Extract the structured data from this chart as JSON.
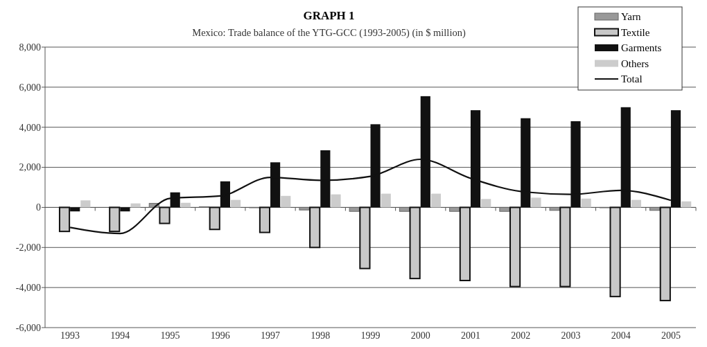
{
  "chart_data": {
    "type": "bar",
    "title": "GRAPH 1",
    "subtitle": "Mexico: Trade balance of the YTG-GCC (1993-2005) (in $ million)",
    "categories": [
      "1993",
      "1994",
      "1995",
      "1996",
      "1997",
      "1998",
      "1999",
      "2000",
      "2001",
      "2002",
      "2003",
      "2004",
      "2005"
    ],
    "series": [
      {
        "name": "Yarn",
        "color": "#999999",
        "values": [
          0,
          0,
          200,
          30,
          -20,
          -130,
          -200,
          -200,
          -200,
          -200,
          -150,
          -20,
          -150
        ]
      },
      {
        "name": "Textile",
        "color": "#c8c8c8",
        "values": [
          -1200,
          -1200,
          -800,
          -1100,
          -1250,
          -2000,
          -3050,
          -3550,
          -3650,
          -3950,
          -3950,
          -4450,
          -4650
        ]
      },
      {
        "name": "Garments",
        "color": "#111111",
        "values": [
          -200,
          -200,
          750,
          1300,
          2250,
          2850,
          4150,
          5550,
          4850,
          4450,
          4300,
          5000,
          4850
        ]
      },
      {
        "name": "Others",
        "color": "#cccccc",
        "values": [
          350,
          200,
          230,
          375,
          575,
          650,
          685,
          685,
          420,
          485,
          440,
          375,
          300
        ]
      },
      {
        "name": "Total",
        "type": "line",
        "color": "#111111",
        "values": [
          -1000,
          -1300,
          450,
          570,
          1500,
          1350,
          1550,
          2400,
          1450,
          800,
          650,
          850,
          350
        ]
      }
    ],
    "ylim": [
      -6000,
      8000
    ],
    "yticks": [
      {
        "value": -6000,
        "label": "-6,000"
      },
      {
        "value": -4000,
        "label": "-4,000"
      },
      {
        "value": -2000,
        "label": "-2,000"
      },
      0,
      {
        "value": 2000,
        "label": "2,000"
      },
      {
        "value": 4000,
        "label": "4,000"
      },
      {
        "value": 6000,
        "label": "6,000"
      },
      {
        "value": 8000,
        "label": "8,000"
      }
    ],
    "grid": "y",
    "legend": "top right"
  }
}
